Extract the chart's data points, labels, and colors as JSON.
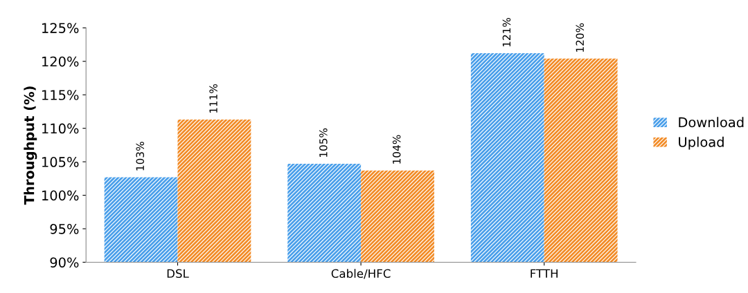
{
  "chart_data": {
    "type": "bar",
    "ylabel": "Throughput (%)",
    "categories": [
      "DSL",
      "Cable/HFC",
      "FTTH"
    ],
    "series": [
      {
        "name": "Download",
        "color": "#4a9fea",
        "values": [
          102.7,
          104.7,
          121.2
        ],
        "value_labels": [
          "103%",
          "105%",
          "121%"
        ]
      },
      {
        "name": "Upload",
        "color": "#f28c28",
        "values": [
          111.3,
          103.7,
          120.4
        ],
        "value_labels": [
          "111%",
          "104%",
          "120%"
        ]
      }
    ],
    "ylim": [
      90,
      125
    ],
    "yticks": [
      {
        "value": 90,
        "label": "90%"
      },
      {
        "value": 95,
        "label": "95%"
      },
      {
        "value": 100,
        "label": "100%"
      },
      {
        "value": 105,
        "label": "105%"
      },
      {
        "value": 110,
        "label": "110%"
      },
      {
        "value": 115,
        "label": "115%"
      },
      {
        "value": 120,
        "label": "120%"
      },
      {
        "value": 125,
        "label": "125%"
      }
    ],
    "grid": false,
    "legend": "right"
  }
}
